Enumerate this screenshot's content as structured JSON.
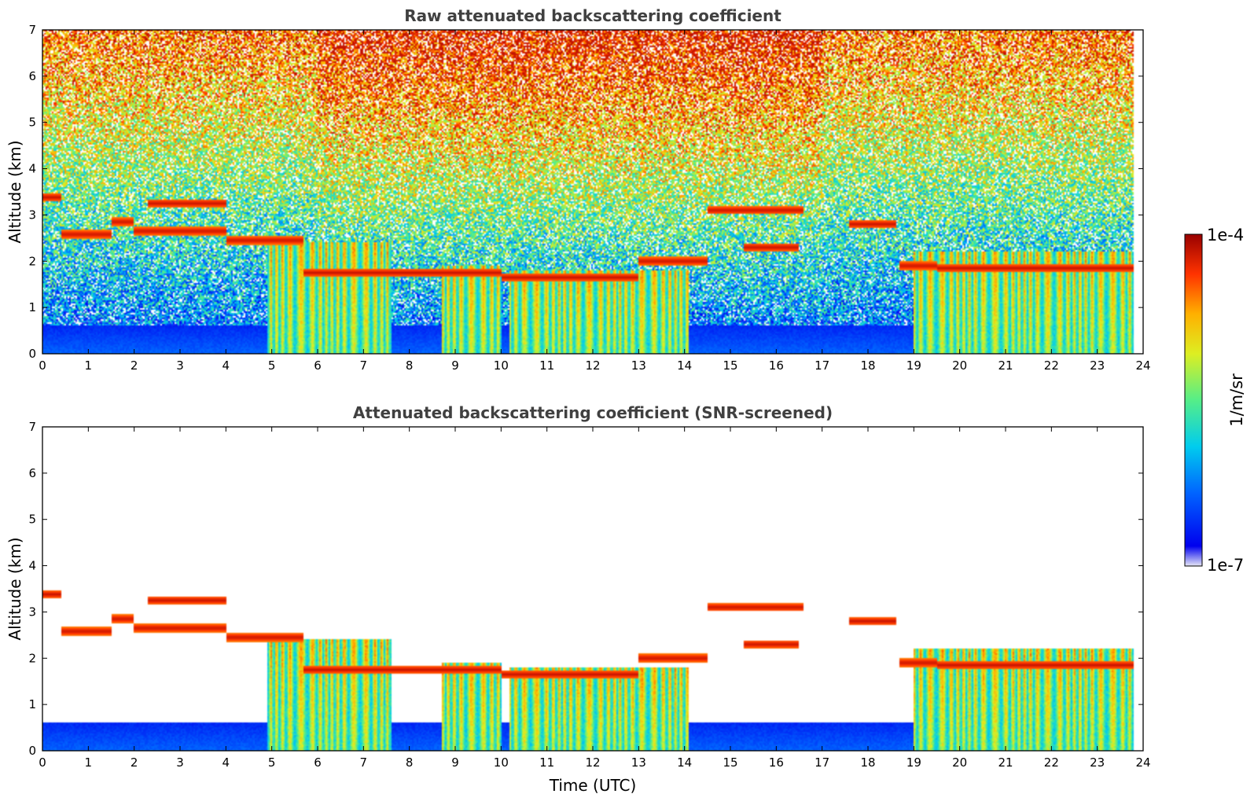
{
  "figure": {
    "panels": [
      {
        "title": "Raw attenuated backscattering coefficient",
        "ylabel": "Altitude (km)",
        "xlabel": ""
      },
      {
        "title": "Attenuated backscattering coefficient (SNR-screened)",
        "ylabel": "Altitude (km)",
        "xlabel": "Time (UTC)"
      }
    ],
    "colorbar": {
      "label": "1/m/sr",
      "max_label": "1e-4",
      "min_label": "1e-7"
    }
  },
  "chart_data": [
    {
      "type": "heatmap",
      "title": "Raw attenuated backscattering coefficient",
      "xlabel": "",
      "ylabel": "Altitude (km)",
      "xlim": [
        0,
        24
      ],
      "ylim": [
        0,
        7
      ],
      "xticks": [
        "0",
        "1",
        "2",
        "3",
        "4",
        "5",
        "6",
        "7",
        "8",
        "9",
        "10",
        "11",
        "12",
        "13",
        "14",
        "15",
        "16",
        "17",
        "18",
        "19",
        "20",
        "21",
        "22",
        "23",
        "24"
      ],
      "yticks": [
        "0",
        "1",
        "2",
        "3",
        "4",
        "5",
        "6",
        "7"
      ],
      "colorscale": "jet",
      "color_range": [
        "1e-7",
        "1e-4"
      ],
      "screened": false
    },
    {
      "type": "heatmap",
      "title": "Attenuated backscattering coefficient (SNR-screened)",
      "xlabel": "Time (UTC)",
      "ylabel": "Altitude (km)",
      "xlim": [
        0,
        24
      ],
      "ylim": [
        0,
        7
      ],
      "xticks": [
        "0",
        "1",
        "2",
        "3",
        "4",
        "5",
        "6",
        "7",
        "8",
        "9",
        "10",
        "11",
        "12",
        "13",
        "14",
        "15",
        "16",
        "17",
        "18",
        "19",
        "20",
        "21",
        "22",
        "23",
        "24"
      ],
      "yticks": [
        "0",
        "1",
        "2",
        "3",
        "4",
        "5",
        "6",
        "7"
      ],
      "colorscale": "jet",
      "color_range": [
        "1e-7",
        "1e-4"
      ],
      "screened": true
    }
  ],
  "cloud_layers": [
    {
      "t0": 0.0,
      "t1": 0.4,
      "z": 3.38
    },
    {
      "t0": 0.4,
      "t1": 1.5,
      "z": 2.58
    },
    {
      "t0": 1.5,
      "t1": 2.0,
      "z": 2.85
    },
    {
      "t0": 2.0,
      "t1": 4.0,
      "z": 2.65
    },
    {
      "t0": 2.3,
      "t1": 4.0,
      "z": 3.25
    },
    {
      "t0": 4.0,
      "t1": 5.7,
      "z": 2.45
    },
    {
      "t0": 5.7,
      "t1": 7.5,
      "z": 1.75
    },
    {
      "t0": 7.5,
      "t1": 10.0,
      "z": 1.75
    },
    {
      "t0": 10.0,
      "t1": 13.0,
      "z": 1.65
    },
    {
      "t0": 13.0,
      "t1": 14.5,
      "z": 2.0
    },
    {
      "t0": 14.5,
      "t1": 16.6,
      "z": 3.1
    },
    {
      "t0": 15.3,
      "t1": 16.5,
      "z": 2.3
    },
    {
      "t0": 17.6,
      "t1": 18.6,
      "z": 2.8
    },
    {
      "t0": 18.7,
      "t1": 19.5,
      "z": 1.9
    },
    {
      "t0": 19.5,
      "t1": 23.8,
      "z": 1.85
    }
  ],
  "precip_regions": [
    {
      "t0": 4.9,
      "t1": 7.6,
      "top": 2.4
    },
    {
      "t0": 8.7,
      "t1": 10.0,
      "top": 1.9
    },
    {
      "t0": 10.2,
      "t1": 14.1,
      "top": 1.8
    },
    {
      "t0": 19.0,
      "t1": 23.8,
      "top": 2.2
    }
  ]
}
